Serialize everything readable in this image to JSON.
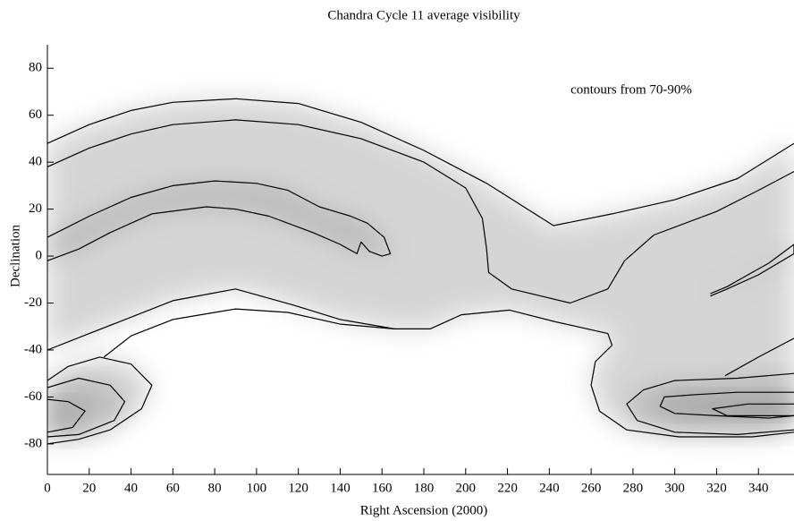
{
  "chart_data": {
    "type": "contour",
    "title": "Chandra Cycle 11 average visibility",
    "xlabel": "Right Ascension (2000)",
    "ylabel": "Declination",
    "annotation": "contours from 70-90%",
    "line_color": "#000000",
    "xlim": [
      0,
      357
    ],
    "ylim": [
      -93,
      90
    ],
    "xticks": [
      0,
      20,
      40,
      60,
      80,
      100,
      120,
      140,
      160,
      180,
      200,
      220,
      240,
      260,
      280,
      300,
      320,
      340
    ],
    "yticks": [
      -80,
      -60,
      -40,
      -20,
      0,
      20,
      40,
      60,
      80
    ],
    "contours": [
      {
        "x": [
          0,
          20,
          40,
          60,
          90,
          120,
          150,
          180,
          210,
          242,
          270,
          300,
          330,
          357
        ],
        "y": [
          48,
          56,
          62,
          65.5,
          67,
          65,
          57,
          45,
          31,
          13,
          18,
          24,
          33,
          48
        ]
      },
      {
        "x": [
          0,
          20,
          40,
          60,
          90,
          120,
          150,
          180,
          200,
          208,
          210,
          211,
          222,
          250,
          268,
          276,
          290,
          320,
          340,
          357
        ],
        "y": [
          38,
          46,
          52,
          56,
          58,
          56,
          50,
          40,
          29,
          16,
          3,
          -7,
          -14,
          -20,
          -14,
          -2,
          9,
          19,
          28,
          36
        ]
      },
      {
        "x": [
          0,
          20,
          40,
          60,
          90,
          118,
          140,
          166,
          183,
          198,
          221,
          243,
          268,
          270,
          262,
          260,
          264,
          277,
          302,
          337,
          357
        ],
        "y": [
          -40,
          -33,
          -26,
          -19,
          -14,
          -21,
          -27,
          -31,
          -31,
          -25,
          -23,
          -28,
          -33,
          -38,
          -45,
          -55,
          -66,
          -74,
          -77,
          -77,
          -75
        ]
      },
      {
        "x": [
          27,
          40,
          60,
          90,
          115,
          140,
          166
        ],
        "y": [
          -43,
          -34,
          -27,
          -22.5,
          -24,
          -29,
          -31
        ]
      },
      {
        "x": [
          324,
          340,
          357
        ],
        "y": [
          -51,
          -43,
          -35
        ]
      },
      {
        "x": [
          0,
          20,
          40,
          60,
          80,
          100,
          115,
          130,
          145,
          153,
          161,
          164,
          160,
          154,
          150,
          148,
          140,
          127,
          106,
          90,
          76,
          50,
          30,
          15,
          0
        ],
        "y": [
          8,
          17,
          25,
          30,
          32,
          31,
          28,
          21,
          17,
          14,
          8,
          1,
          0,
          2,
          6,
          1,
          5,
          10,
          17,
          20,
          21,
          18,
          10,
          3,
          -2
        ]
      },
      {
        "x": [
          0,
          10,
          25,
          40,
          50,
          45,
          30,
          15,
          0
        ],
        "y": [
          -53,
          -47,
          -43,
          -46,
          -55,
          -65,
          -74,
          -78,
          -80
        ]
      },
      {
        "x": [
          0,
          15,
          30,
          37,
          32,
          15,
          0
        ],
        "y": [
          -56,
          -52,
          -55,
          -62,
          -70,
          -76,
          -77
        ]
      },
      {
        "x": [
          0,
          10,
          18,
          12,
          0
        ],
        "y": [
          -61,
          -62,
          -66,
          -73,
          -75
        ]
      },
      {
        "x": [
          357,
          330,
          300,
          285,
          277,
          282,
          300,
          330,
          357
        ],
        "y": [
          -50,
          -52,
          -53,
          -57,
          -63,
          -70,
          -75,
          -76,
          -74
        ]
      },
      {
        "x": [
          357,
          330,
          310,
          295,
          293,
          300,
          320,
          345,
          357
        ],
        "y": [
          -58,
          -58,
          -59,
          -60,
          -64,
          -67,
          -68,
          -69,
          -68
        ]
      },
      {
        "x": [
          357,
          335,
          318,
          325,
          357
        ],
        "y": [
          -63,
          -63,
          -65,
          -68,
          -68
        ]
      },
      {
        "x": [
          317,
          325,
          335,
          345,
          357,
          357,
          340,
          325,
          317
        ],
        "y": [
          -16,
          -13,
          -8,
          -3,
          5,
          1,
          -8,
          -14,
          -17
        ]
      }
    ]
  }
}
